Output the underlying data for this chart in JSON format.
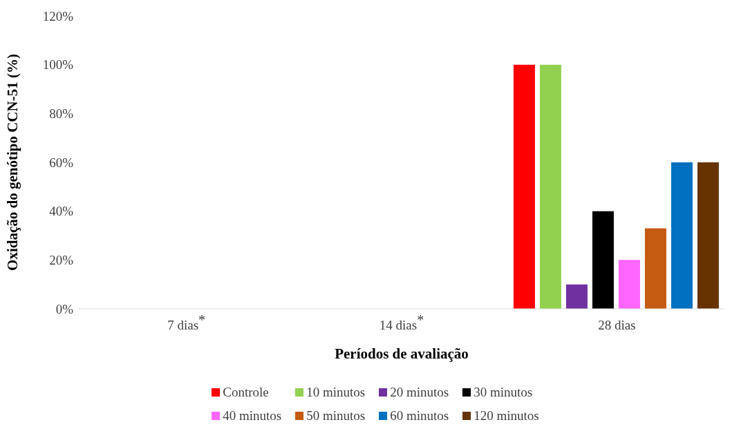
{
  "chart_data": {
    "type": "bar",
    "categories": [
      "7 dias$^{*}$",
      "14 dias$^{*}$",
      "28 dias"
    ],
    "xlabel": "Períodos de avaliação",
    "ylabel": "Oxidação do genótipo CCN-51 (%)",
    "ylim": [
      0,
      120
    ],
    "yticks": [
      {
        "value": 0,
        "label": "0%"
      },
      {
        "value": 20,
        "label": "20%"
      },
      {
        "value": 40,
        "label": "40%"
      },
      {
        "value": 60,
        "label": "60%"
      },
      {
        "value": 80,
        "label": "80%"
      },
      {
        "value": 100,
        "label": "100%"
      },
      {
        "value": 120,
        "label": "120%"
      }
    ],
    "grid": false,
    "legend": "bottom",
    "series": [
      {
        "name": "Controle",
        "color": "#ff0000",
        "values": [
          0,
          0,
          100
        ]
      },
      {
        "name": "10 minutos",
        "color": "#92d050",
        "values": [
          0,
          0,
          100
        ]
      },
      {
        "name": "20 minutos",
        "color": "#7030a0",
        "values": [
          0,
          0,
          10
        ]
      },
      {
        "name": "30 minutos",
        "color": "#000000",
        "values": [
          0,
          0,
          40
        ]
      },
      {
        "name": "40 minutos",
        "color": "#ff66ff",
        "values": [
          0,
          0,
          20
        ]
      },
      {
        "name": "50 minutos",
        "color": "#c55a11",
        "values": [
          0,
          0,
          33
        ]
      },
      {
        "name": "60 minutos",
        "color": "#0070c0",
        "values": [
          0,
          0,
          60
        ]
      },
      {
        "name": "120 minutos",
        "color": "#663300",
        "values": [
          0,
          0,
          60
        ]
      }
    ]
  }
}
